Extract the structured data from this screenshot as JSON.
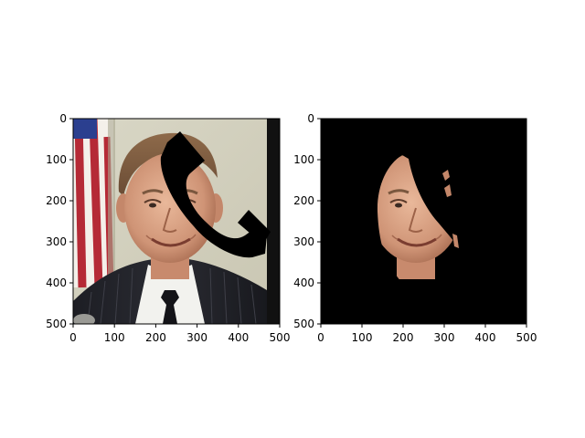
{
  "figure": {
    "background_color": "#ffffff",
    "mask_color": "#000000",
    "axis_color": "#000000"
  },
  "chart_data": [
    {
      "type": "image",
      "panel": "original-with-occlusion",
      "xlim": [
        0,
        500
      ],
      "ylim": [
        500,
        0
      ],
      "y_inverted": true,
      "xticks": [
        0,
        100,
        200,
        300,
        400,
        500
      ],
      "yticks": [
        0,
        100,
        200,
        300,
        400,
        500
      ],
      "grid": false,
      "legend": "none",
      "content": "photo of a man in a suit with an American flag at left; a black telephone-receiver shaped occluder covers part of the face",
      "occluder_icon": "phone-receiver-icon"
    },
    {
      "type": "image",
      "panel": "face-mask-result",
      "xlim": [
        0,
        500
      ],
      "ylim": [
        500,
        0
      ],
      "y_inverted": true,
      "xticks": [
        0,
        100,
        200,
        300,
        400,
        500
      ],
      "yticks": [
        0,
        100,
        200,
        300,
        400,
        500
      ],
      "grid": false,
      "legend": "none",
      "content": "black background with only the visible face region kept; occluded part removed"
    }
  ]
}
